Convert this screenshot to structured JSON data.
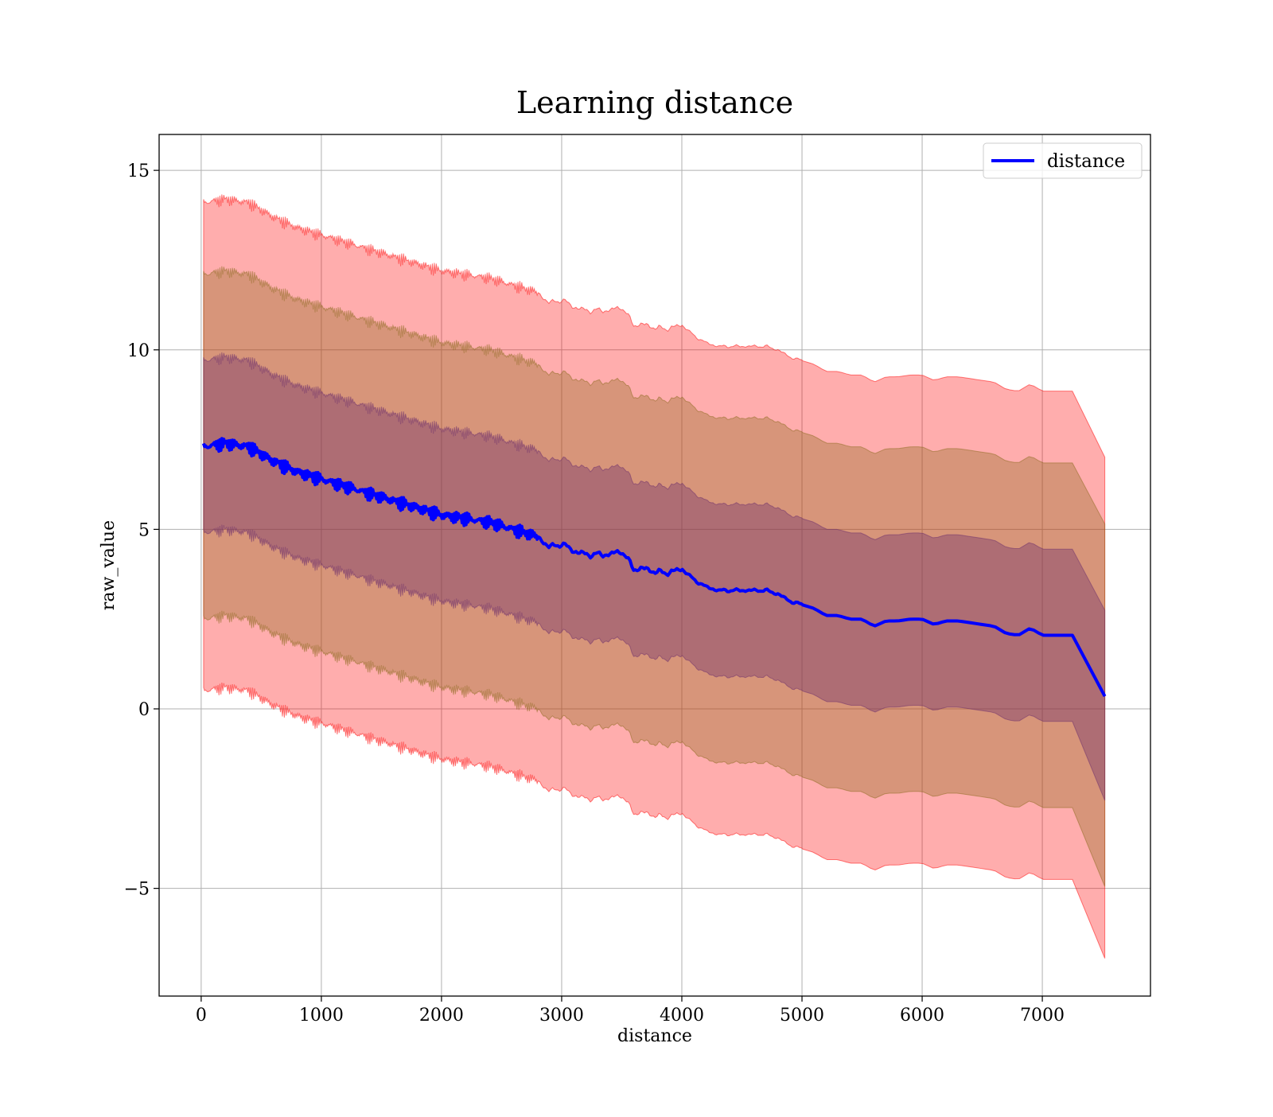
{
  "colors": {
    "line": "#0000ff",
    "band_outer": "#ff0000",
    "band_middle": "#8b6a1e",
    "band_inner": "#6b2e6b",
    "grid": "#b0b0b0",
    "axes": "#000000",
    "background": "#ffffff"
  },
  "chart_data": {
    "type": "line",
    "title": "Learning distance",
    "xlabel": "distance",
    "ylabel": "raw_value",
    "xlim": [
      -350,
      7900
    ],
    "ylim": [
      -8.0,
      16.0
    ],
    "x_ticks": [
      0,
      1000,
      2000,
      3000,
      4000,
      5000,
      6000,
      7000
    ],
    "x_tick_labels": [
      "0",
      "1000",
      "2000",
      "3000",
      "4000",
      "5000",
      "6000",
      "7000"
    ],
    "y_ticks": [
      -5,
      0,
      5,
      10,
      15
    ],
    "y_tick_labels": [
      "−5",
      "0",
      "5",
      "10",
      "15"
    ],
    "grid": true,
    "legend": {
      "position": "top-right",
      "entries": [
        "distance"
      ]
    },
    "series": [
      {
        "name": "distance",
        "x": [
          20,
          200,
          400,
          600,
          800,
          1000,
          1200,
          1400,
          1600,
          1800,
          2000,
          2200,
          2400,
          2600,
          2700,
          2800,
          2900,
          3000,
          3100,
          3200,
          3300,
          3400,
          3500,
          3600,
          3700,
          3800,
          3900,
          4000,
          4100,
          4200,
          4300,
          4400,
          4500,
          4600,
          4700,
          4800,
          4900,
          5000,
          5100,
          5200,
          5300,
          5400,
          5500,
          5600,
          5700,
          5800,
          5900,
          6000,
          6100,
          6200,
          6300,
          6400,
          6500,
          6600,
          6700,
          6800,
          6900,
          7000,
          7100,
          7250,
          7520
        ],
        "y": [
          7.3,
          7.4,
          7.3,
          6.9,
          6.6,
          6.4,
          6.2,
          6.0,
          5.8,
          5.6,
          5.4,
          5.3,
          5.2,
          5.0,
          4.9,
          4.8,
          4.5,
          4.6,
          4.4,
          4.3,
          4.3,
          4.3,
          4.4,
          3.9,
          3.9,
          3.8,
          3.8,
          3.9,
          3.6,
          3.4,
          3.3,
          3.3,
          3.3,
          3.3,
          3.3,
          3.2,
          3.0,
          2.9,
          2.8,
          2.6,
          2.6,
          2.5,
          2.5,
          2.3,
          2.45,
          2.45,
          2.5,
          2.5,
          2.35,
          2.45,
          2.45,
          2.4,
          2.35,
          2.3,
          2.1,
          2.05,
          2.25,
          2.05,
          2.05,
          2.05,
          0.35
        ],
        "bands_half_width": [
          2.4,
          4.8,
          6.8
        ]
      }
    ]
  }
}
